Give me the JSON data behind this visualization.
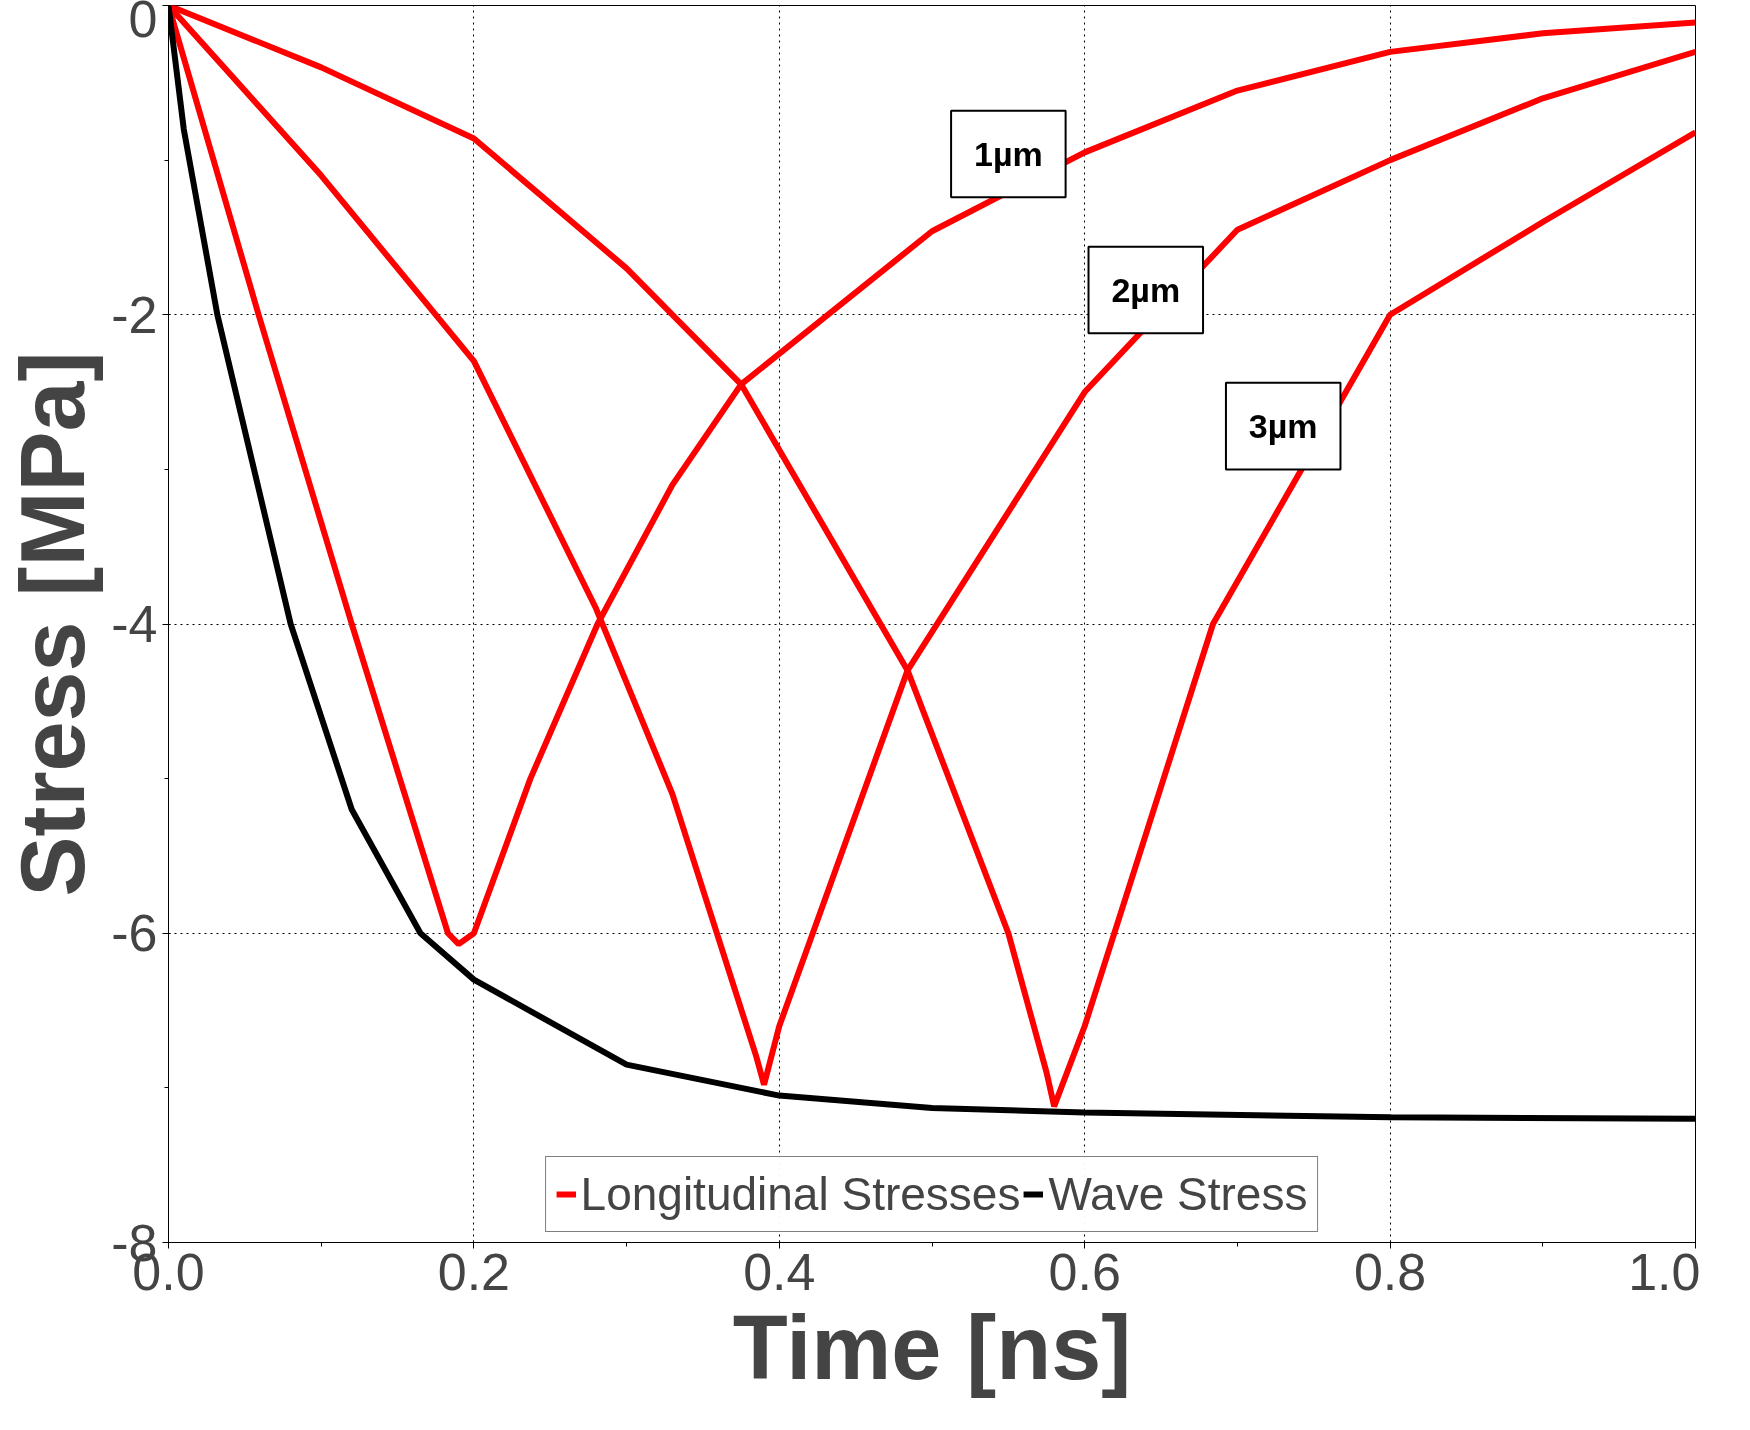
{
  "chart_data": {
    "type": "line",
    "xlabel": "Time [ns]",
    "ylabel": "Stress [MPa]",
    "series": [
      {
        "name": "Longitudinal Stresses",
        "color": "#ff0000",
        "x": [
          0,
          0.059,
          0.12,
          0.183,
          0.19,
          0.2,
          0.237,
          0.281,
          0.33,
          0.375,
          0.5,
          0.6,
          0.7,
          0.8,
          0.9,
          1.0
        ],
        "values": [
          0,
          -2,
          -4,
          -6,
          -6.07,
          -6.0,
          -5.0,
          -4,
          -3.1,
          -2.45,
          -1.46,
          -0.95,
          -0.55,
          -0.3,
          -0.18,
          -0.11
        ]
      },
      {
        "color": "#ff0000",
        "x": [
          0,
          0.05,
          0.1,
          0.2,
          0.28,
          0.33,
          0.385,
          0.39,
          0.4,
          0.484,
          0.6,
          0.7,
          0.8,
          0.9,
          1.0
        ],
        "values": [
          0,
          -0.55,
          -1.1,
          -2.3,
          -3.9,
          -5.1,
          -6.8,
          -6.98,
          -6.6,
          -4.3,
          -2.5,
          -1.45,
          -1.0,
          -0.6,
          -0.3
        ]
      },
      {
        "color": "#ff0000",
        "x": [
          0,
          0.1,
          0.2,
          0.3,
          0.375,
          0.484,
          0.55,
          0.575,
          0.58,
          0.6,
          0.684,
          0.8,
          0.9,
          1.0
        ],
        "values": [
          0,
          -0.4,
          -0.86,
          -1.7,
          -2.45,
          -4.3,
          -6.0,
          -6.9,
          -7.12,
          -6.6,
          -4.0,
          -2.0,
          -1.4,
          -0.82
        ]
      },
      {
        "name": "Wave Stress",
        "color": "#000000",
        "x": [
          0,
          0.01,
          0.032,
          0.08,
          0.12,
          0.165,
          0.2,
          0.3,
          0.4,
          0.5,
          0.6,
          0.8,
          1.0
        ],
        "values": [
          0,
          -0.8,
          -2,
          -4,
          -5.2,
          -6,
          -6.3,
          -6.85,
          -7.05,
          -7.13,
          -7.16,
          -7.19,
          -7.2
        ]
      }
    ],
    "xlim": [
      0,
      1.0
    ],
    "ylim": [
      -8,
      0
    ],
    "xticks": [
      "0.0",
      {
        "value": 0.1,
        "label": null
      },
      {
        "value": 0.2,
        "label": "0.2"
      },
      {
        "value": 0.3,
        "label": null
      },
      {
        "value": 0.4,
        "label": "0.4"
      },
      {
        "value": 0.5,
        "label": null
      },
      {
        "value": 0.6,
        "label": "0.6"
      },
      {
        "value": 0.7,
        "label": null
      },
      {
        "value": 0.8,
        "label": "0.8"
      },
      {
        "value": 0.9,
        "label": null
      },
      {
        "value": 1.0,
        "label": "1.0"
      }
    ],
    "yticks": [
      -8,
      {
        "value": -7,
        "label": null
      },
      -6,
      {
        "value": -5,
        "label": null
      },
      -4,
      {
        "value": -3,
        "label": null
      },
      -2,
      {
        "value": -1,
        "label": null
      },
      0
    ],
    "annotations": [
      "1µm",
      "2µm",
      "3µm"
    ],
    "grid": true,
    "legend": "bottom",
    "line_style": "solid",
    "marker": "none"
  }
}
